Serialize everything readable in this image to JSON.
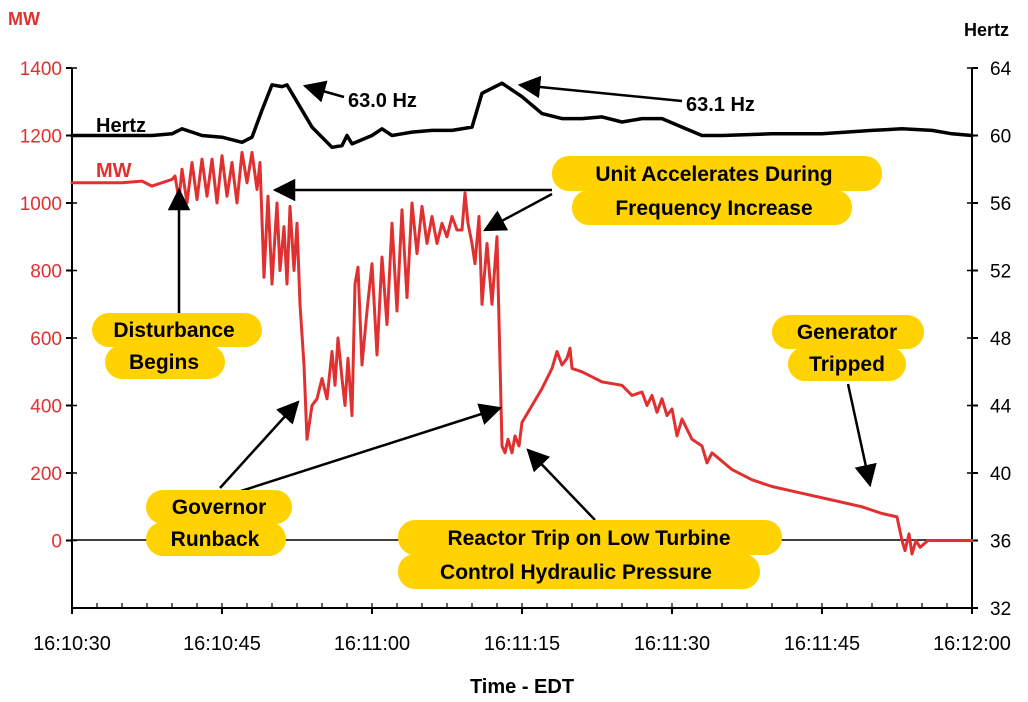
{
  "chart_data": {
    "type": "line",
    "xlabel": "Time - EDT",
    "x_ticks": [
      "16:10:30",
      "16:10:45",
      "16:11:00",
      "16:11:15",
      "16:11:30",
      "16:11:45",
      "16:12:00"
    ],
    "y_left": {
      "unit": "MW",
      "ticks": [
        "0",
        "200",
        "400",
        "600",
        "800",
        "1000",
        "1200",
        "1400"
      ],
      "range": [
        -200,
        1400
      ],
      "color": "#e03030"
    },
    "y_right": {
      "unit": "Hertz",
      "ticks": [
        "32",
        "36",
        "40",
        "44",
        "48",
        "52",
        "56",
        "60",
        "64"
      ],
      "range": [
        32,
        64
      ],
      "color": "#000000"
    },
    "series": [
      {
        "name": "Hertz",
        "axis": "right",
        "color": "#000000",
        "points": [
          [
            0,
            60
          ],
          [
            5,
            60
          ],
          [
            8,
            60
          ],
          [
            10,
            60.1
          ],
          [
            11,
            60.4
          ],
          [
            12,
            60.2
          ],
          [
            13,
            60
          ],
          [
            15,
            59.9
          ],
          [
            17,
            59.6
          ],
          [
            18,
            59.9
          ],
          [
            19,
            61.5
          ],
          [
            20,
            63.0
          ],
          [
            21,
            62.9
          ],
          [
            21.5,
            63.0
          ],
          [
            22,
            62.5
          ],
          [
            23,
            61.5
          ],
          [
            24,
            60.5
          ],
          [
            26,
            59.3
          ],
          [
            27,
            59.4
          ],
          [
            27.5,
            60.0
          ],
          [
            28,
            59.5
          ],
          [
            30,
            60.0
          ],
          [
            31,
            60.4
          ],
          [
            32,
            60.0
          ],
          [
            33,
            60.1
          ],
          [
            34,
            60.2
          ],
          [
            36,
            60.3
          ],
          [
            38,
            60.3
          ],
          [
            40,
            60.5
          ],
          [
            41,
            62.5
          ],
          [
            43,
            63.1
          ],
          [
            45,
            62.3
          ],
          [
            47,
            61.3
          ],
          [
            49,
            61.0
          ],
          [
            51,
            61.0
          ],
          [
            53,
            61.1
          ],
          [
            55,
            60.8
          ],
          [
            57,
            61.0
          ],
          [
            59,
            61.0
          ],
          [
            61,
            60.5
          ],
          [
            63,
            60.0
          ],
          [
            65,
            60.0
          ],
          [
            70,
            60.1
          ],
          [
            75,
            60.1
          ],
          [
            80,
            60.3
          ],
          [
            83,
            60.4
          ],
          [
            86,
            60.3
          ],
          [
            88,
            60.1
          ],
          [
            90,
            60.0
          ]
        ]
      },
      {
        "name": "MW",
        "axis": "left",
        "color": "#e03030",
        "points": [
          [
            0,
            1060
          ],
          [
            5,
            1060
          ],
          [
            7,
            1065
          ],
          [
            8,
            1050
          ],
          [
            10,
            1070
          ],
          [
            10.3,
            1080
          ],
          [
            10.7,
            1010
          ],
          [
            11,
            1100
          ],
          [
            11.5,
            1000
          ],
          [
            12,
            1120
          ],
          [
            12.5,
            1010
          ],
          [
            13,
            1130
          ],
          [
            13.5,
            1020
          ],
          [
            14,
            1130
          ],
          [
            14.5,
            1000
          ],
          [
            15,
            1140
          ],
          [
            15.5,
            1020
          ],
          [
            16,
            1120
          ],
          [
            16.5,
            1000
          ],
          [
            17,
            1150
          ],
          [
            17.5,
            1060
          ],
          [
            18,
            1150
          ],
          [
            18.5,
            1040
          ],
          [
            18.8,
            1120
          ],
          [
            19.2,
            780
          ],
          [
            19.6,
            1020
          ],
          [
            20,
            760
          ],
          [
            20.5,
            1000
          ],
          [
            20.8,
            800
          ],
          [
            21.2,
            930
          ],
          [
            21.5,
            760
          ],
          [
            21.8,
            990
          ],
          [
            22.2,
            800
          ],
          [
            22.5,
            940
          ],
          [
            22.8,
            700
          ],
          [
            23.2,
            520
          ],
          [
            23.5,
            300
          ],
          [
            24,
            400
          ],
          [
            24.5,
            420
          ],
          [
            25,
            480
          ],
          [
            25.5,
            420
          ],
          [
            26,
            560
          ],
          [
            26.3,
            460
          ],
          [
            26.6,
            600
          ],
          [
            27,
            480
          ],
          [
            27.3,
            400
          ],
          [
            27.6,
            540
          ],
          [
            28,
            370
          ],
          [
            28.3,
            760
          ],
          [
            28.6,
            810
          ],
          [
            29,
            520
          ],
          [
            29.5,
            680
          ],
          [
            30,
            820
          ],
          [
            30.5,
            550
          ],
          [
            31,
            840
          ],
          [
            31.5,
            640
          ],
          [
            32,
            940
          ],
          [
            32.5,
            680
          ],
          [
            33,
            980
          ],
          [
            33.5,
            720
          ],
          [
            34,
            1000
          ],
          [
            34.5,
            850
          ],
          [
            35,
            990
          ],
          [
            35.5,
            880
          ],
          [
            36,
            960
          ],
          [
            36.5,
            880
          ],
          [
            37,
            940
          ],
          [
            37.5,
            900
          ],
          [
            38,
            960
          ],
          [
            38.5,
            920
          ],
          [
            39,
            920
          ],
          [
            39.3,
            1030
          ],
          [
            39.6,
            940
          ],
          [
            40,
            880
          ],
          [
            40.3,
            820
          ],
          [
            40.7,
            960
          ],
          [
            41,
            700
          ],
          [
            41.5,
            880
          ],
          [
            42,
            700
          ],
          [
            42.5,
            900
          ],
          [
            43,
            280
          ],
          [
            43.3,
            260
          ],
          [
            43.6,
            300
          ],
          [
            44,
            260
          ],
          [
            44.3,
            310
          ],
          [
            44.7,
            280
          ],
          [
            45,
            350
          ],
          [
            47,
            450
          ],
          [
            48,
            510
          ],
          [
            48.5,
            560
          ],
          [
            49,
            520
          ],
          [
            49.5,
            540
          ],
          [
            49.8,
            570
          ],
          [
            50,
            510
          ],
          [
            51,
            500
          ],
          [
            53,
            470
          ],
          [
            55,
            460
          ],
          [
            56,
            430
          ],
          [
            57,
            440
          ],
          [
            57.5,
            400
          ],
          [
            58,
            430
          ],
          [
            58.5,
            380
          ],
          [
            59,
            420
          ],
          [
            59.5,
            370
          ],
          [
            60,
            390
          ],
          [
            60.5,
            310
          ],
          [
            61,
            360
          ],
          [
            62,
            300
          ],
          [
            63,
            280
          ],
          [
            63.5,
            230
          ],
          [
            64,
            260
          ],
          [
            66,
            210
          ],
          [
            68,
            180
          ],
          [
            70,
            160
          ],
          [
            73,
            140
          ],
          [
            76,
            120
          ],
          [
            79,
            100
          ],
          [
            81,
            80
          ],
          [
            82.5,
            70
          ],
          [
            83,
            0
          ],
          [
            83.3,
            -30
          ],
          [
            83.7,
            20
          ],
          [
            84,
            -40
          ],
          [
            84.4,
            0
          ],
          [
            84.8,
            -20
          ],
          [
            85.2,
            -10
          ],
          [
            85.6,
            0
          ],
          [
            86,
            0
          ],
          [
            90,
            0
          ]
        ]
      }
    ],
    "series_labels": {
      "hertz": "Hertz",
      "mw": "MW"
    },
    "peak_labels": [
      "63.0 Hz",
      "63.1 Hz"
    ],
    "annotations": [
      {
        "name": "disturbance-begins",
        "lines": [
          "Disturbance",
          "Begins"
        ]
      },
      {
        "name": "unit-accelerates",
        "lines": [
          "Unit Accelerates During",
          "Frequency Increase"
        ]
      },
      {
        "name": "governor-runback",
        "lines": [
          "Governor",
          "Runback"
        ]
      },
      {
        "name": "reactor-trip",
        "lines": [
          "Reactor Trip on Low Turbine",
          "Control Hydraulic Pressure"
        ]
      },
      {
        "name": "generator-tripped",
        "lines": [
          "Generator",
          "Tripped"
        ]
      }
    ],
    "highlight_color": "#ffd200",
    "grid": false
  }
}
